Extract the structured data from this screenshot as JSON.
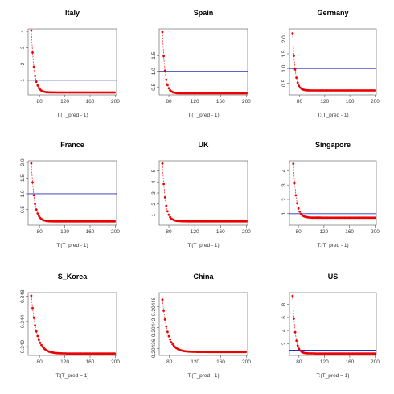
{
  "colors": {
    "series": "#ee0000",
    "refline": "#2b2bbf",
    "axis": "#555555"
  },
  "chart_data": [
    {
      "type": "scatter",
      "title": "Italy",
      "xlabel": "T:(T_pred - 1)",
      "ylabel": "",
      "xlim": [
        62,
        202
      ],
      "ylim": [
        0.1,
        4.15
      ],
      "xticks": [
        80,
        120,
        160,
        200
      ],
      "xtick_labels": [
        "80",
        "120",
        "160",
        "200"
      ],
      "yticks": [
        1,
        2,
        3,
        4
      ],
      "ytick_labels": [
        "1",
        "2",
        "3",
        "4"
      ],
      "hline": 1.0,
      "x_start": 67,
      "x_end": 200,
      "y_start": 4.05,
      "y_end": 0.25,
      "decay": 0.22
    },
    {
      "type": "scatter",
      "title": "Spain",
      "xlabel": "T:(T_pred - 1)",
      "ylabel": "",
      "xlim": [
        65,
        202
      ],
      "ylim": [
        0.25,
        2.35
      ],
      "xticks": [
        80,
        120,
        160,
        200
      ],
      "xtick_labels": [
        "80",
        "120",
        "160",
        "200"
      ],
      "yticks": [
        0.5,
        1.0,
        1.5
      ],
      "ytick_labels": [
        "0.5",
        "1.0",
        "1.5"
      ],
      "hline": 1.0,
      "x_start": 70,
      "x_end": 200,
      "y_start": 2.25,
      "y_end": 0.3,
      "decay": 0.25
    },
    {
      "type": "scatter",
      "title": "Germany",
      "xlabel": "T:(T_pred - 1)",
      "ylabel": "",
      "xlim": [
        64,
        202
      ],
      "ylim": [
        0.1,
        2.35
      ],
      "xticks": [
        80,
        120,
        160,
        200
      ],
      "xtick_labels": [
        "80",
        "120",
        "160",
        "200"
      ],
      "yticks": [
        0.5,
        1.0,
        1.5,
        2.0
      ],
      "ytick_labels": [
        "0.5",
        "1.0",
        "1.5",
        "2.0"
      ],
      "hline": 1.0,
      "x_start": 69,
      "x_end": 200,
      "y_start": 2.2,
      "y_end": 0.25,
      "decay": 0.25
    },
    {
      "type": "scatter",
      "title": "France",
      "xlabel": "T:(T_pred - 1)",
      "ylabel": "",
      "xlim": [
        62,
        202
      ],
      "ylim": [
        0.0,
        2.05
      ],
      "xticks": [
        80,
        120,
        160,
        200
      ],
      "xtick_labels": [
        "80",
        "120",
        "160",
        "200"
      ],
      "yticks": [
        0.5,
        1.0,
        1.5,
        2.0
      ],
      "ytick_labels": [
        "0.5",
        "1.0",
        "1.5",
        "2.0"
      ],
      "hline": 1.0,
      "x_start": 67,
      "x_end": 200,
      "y_start": 1.97,
      "y_end": 0.12,
      "decay": 0.2
    },
    {
      "type": "scatter",
      "title": "UK",
      "xlabel": "T:(T_pred - 1)",
      "ylabel": "",
      "xlim": [
        65,
        202
      ],
      "ylim": [
        0.1,
        5.9
      ],
      "xticks": [
        80,
        120,
        160,
        200
      ],
      "xtick_labels": [
        "80",
        "120",
        "160",
        "200"
      ],
      "yticks": [
        1,
        2,
        3,
        4,
        5
      ],
      "ytick_labels": [
        "1",
        "2",
        "3",
        "4",
        "5"
      ],
      "hline": 1.0,
      "x_start": 70,
      "x_end": 200,
      "y_start": 5.65,
      "y_end": 0.45,
      "decay": 0.22
    },
    {
      "type": "scatter",
      "title": "Singapore",
      "xlabel": "T:(T_pred - 1)",
      "ylabel": "",
      "xlim": [
        66,
        202
      ],
      "ylim": [
        0.2,
        4.7
      ],
      "xticks": [
        80,
        120,
        160,
        200
      ],
      "xtick_labels": [
        "80",
        "120",
        "160",
        "200"
      ],
      "yticks": [
        1,
        2,
        3,
        4
      ],
      "ytick_labels": [
        "1",
        "2",
        "3",
        "4"
      ],
      "hline": 1.0,
      "x_start": 72,
      "x_end": 200,
      "y_start": 4.5,
      "y_end": 0.72,
      "decay": 0.22
    },
    {
      "type": "scatter",
      "title": "S_Korea",
      "xlabel": "T:(T_pred = 1)",
      "ylabel": "",
      "xlim": [
        62,
        202
      ],
      "ylim": [
        0.3386,
        0.3486
      ],
      "xticks": [
        80,
        120,
        160,
        200
      ],
      "xtick_labels": [
        "80",
        "120",
        "160",
        "200"
      ],
      "yticks": [
        0.34,
        0.344,
        0.348
      ],
      "ytick_labels": [
        "0.340",
        "0.344",
        "0.348"
      ],
      "hline": null,
      "x_start": 67,
      "x_end": 200,
      "y_start": 0.3481,
      "y_end": 0.3389,
      "decay": 0.12
    },
    {
      "type": "scatter",
      "title": "China",
      "xlabel": "T:(T_pred - 1)",
      "ylabel": "",
      "xlim": [
        64,
        202
      ],
      "ylim": [
        0.20434,
        0.20452
      ],
      "xticks": [
        80,
        120,
        160,
        200
      ],
      "xtick_labels": [
        "80",
        "120",
        "160",
        "200"
      ],
      "yticks": [
        0.20436,
        0.20442,
        0.20448
      ],
      "ytick_labels": [
        "0.20436",
        "0.20442",
        "0.20448"
      ],
      "hline": null,
      "x_start": 69,
      "x_end": 200,
      "y_start": 0.2045,
      "y_end": 0.20435,
      "decay": 0.12
    },
    {
      "type": "scatter",
      "title": "US",
      "xlabel": "T:(T_pred = 1)",
      "ylabel": "",
      "xlim": [
        65,
        202
      ],
      "ylim": [
        0.2,
        9.8
      ],
      "xticks": [
        80,
        120,
        160,
        200
      ],
      "xtick_labels": [
        "80",
        "120",
        "160",
        "200"
      ],
      "yticks": [
        2,
        4,
        6,
        8
      ],
      "ytick_labels": [
        "2",
        "4",
        "6",
        "8"
      ],
      "hline": 1.0,
      "x_start": 70,
      "x_end": 200,
      "y_start": 9.3,
      "y_end": 0.5,
      "decay": 0.25
    }
  ]
}
